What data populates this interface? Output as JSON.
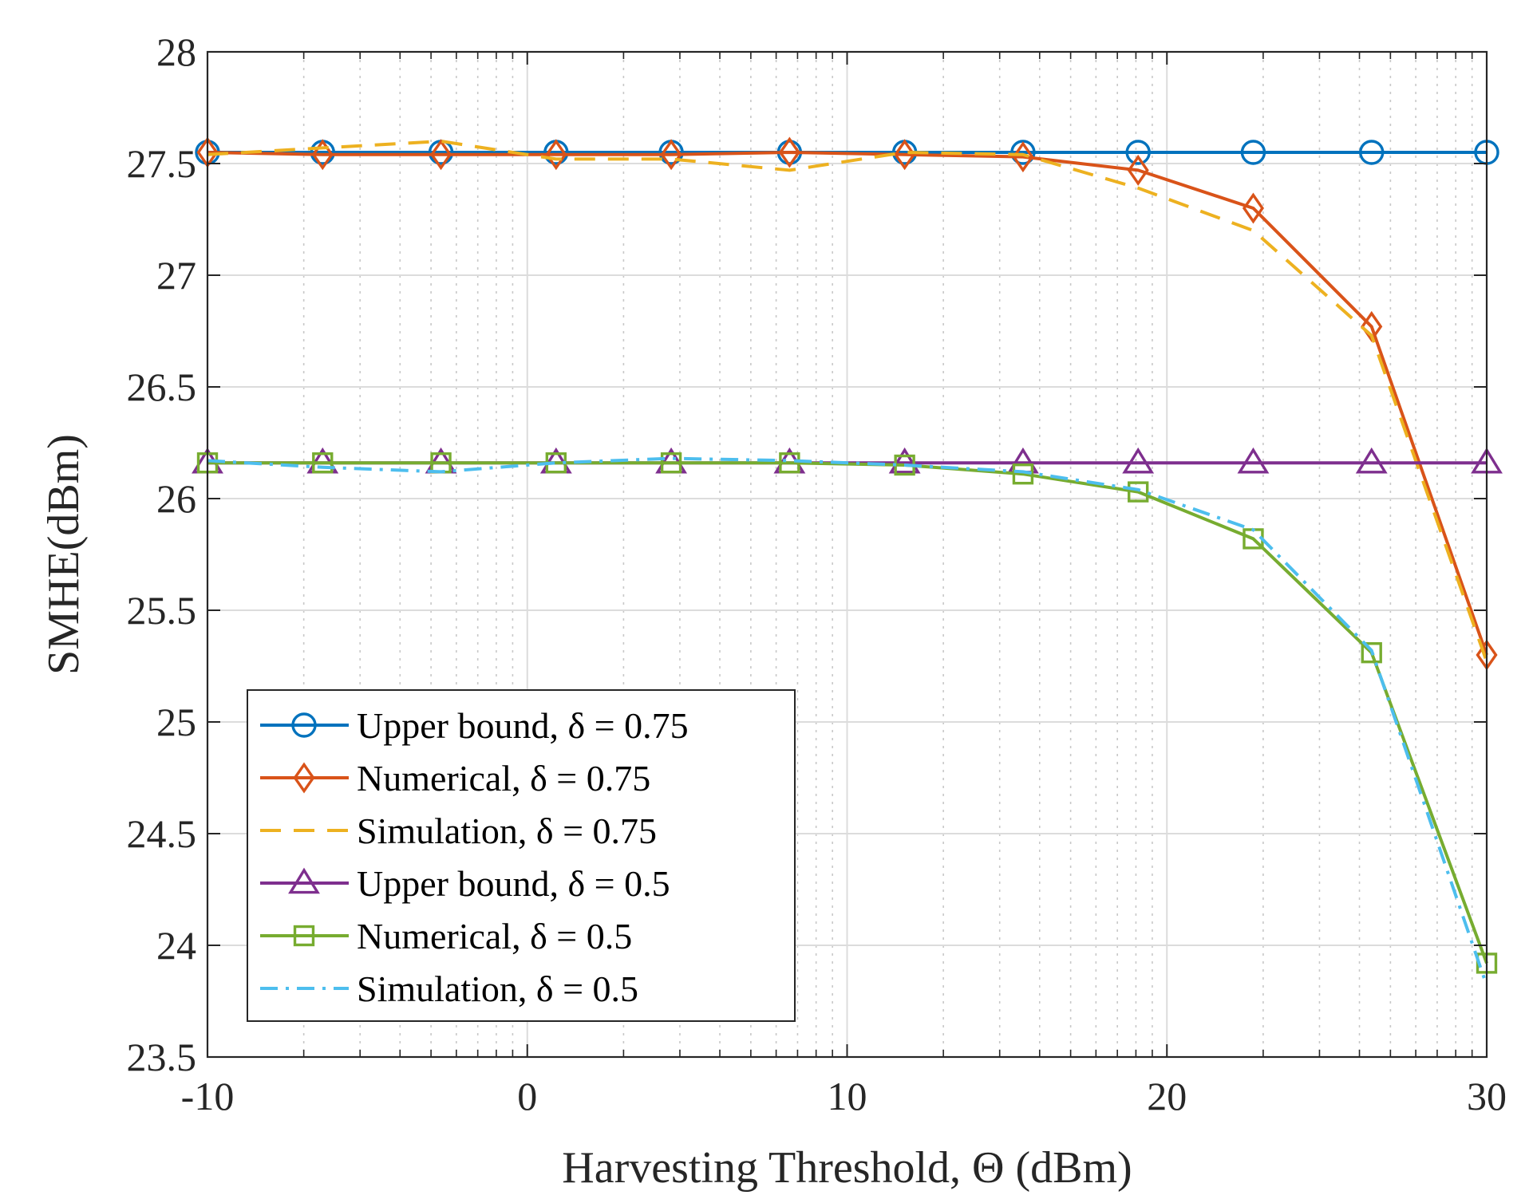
{
  "chart_data": {
    "type": "line",
    "title": "",
    "xlabel": "Harvesting Threshold,  Θ (dBm)",
    "ylabel": "SMHE(dBm)",
    "xlim": [
      -10,
      30
    ],
    "ylim": [
      23.5,
      28
    ],
    "xticks": [
      -10,
      0,
      10,
      20,
      30
    ],
    "xtick_labels": [
      "-10",
      "0",
      "10",
      "20",
      "30"
    ],
    "yticks": [
      23.5,
      24,
      24.5,
      25,
      25.5,
      26,
      26.5,
      27,
      27.5,
      28
    ],
    "ytick_labels": [
      "23.5",
      "24",
      "24.5",
      "25",
      "25.5",
      "26",
      "26.5",
      "27",
      "27.5",
      "28"
    ],
    "grid": true,
    "legend_position": "bottom-left",
    "x": [
      -10,
      -6.4,
      -2.7,
      0.9,
      4.5,
      8.2,
      11.8,
      15.5,
      19.1,
      22.7,
      26.4,
      30
    ],
    "series": [
      {
        "name": "Upper bound, δ = 0.75",
        "color": "#0072BD",
        "marker": "circle",
        "dash": "solid",
        "values": [
          27.55,
          27.55,
          27.55,
          27.55,
          27.55,
          27.55,
          27.55,
          27.55,
          27.55,
          27.55,
          27.55,
          27.55
        ]
      },
      {
        "name": "Numerical, δ = 0.75",
        "color": "#D95319",
        "marker": "diamond",
        "dash": "solid",
        "values": [
          27.55,
          27.54,
          27.54,
          27.54,
          27.54,
          27.55,
          27.54,
          27.53,
          27.47,
          27.3,
          26.77,
          25.3
        ]
      },
      {
        "name": "Simulation, δ = 0.75",
        "color": "#EDB120",
        "marker": "none",
        "dash": "dashed",
        "values": [
          27.54,
          27.57,
          27.6,
          27.52,
          27.52,
          27.47,
          27.55,
          27.54,
          27.39,
          27.2,
          26.73,
          25.27
        ]
      },
      {
        "name": "Upper bound, δ = 0.5",
        "color": "#7E2F8E",
        "marker": "triangle",
        "dash": "solid",
        "values": [
          26.16,
          26.16,
          26.16,
          26.16,
          26.16,
          26.16,
          26.16,
          26.16,
          26.16,
          26.16,
          26.16,
          26.16
        ]
      },
      {
        "name": "Numerical, δ = 0.5",
        "color": "#77AC30",
        "marker": "square",
        "dash": "solid",
        "values": [
          26.16,
          26.16,
          26.16,
          26.16,
          26.16,
          26.16,
          26.15,
          26.11,
          26.03,
          25.82,
          25.31,
          23.92
        ]
      },
      {
        "name": "Simulation, δ = 0.5",
        "color": "#4DBEEE",
        "marker": "none",
        "dash": "dashdot",
        "values": [
          26.17,
          26.14,
          26.12,
          26.16,
          26.18,
          26.17,
          26.15,
          26.12,
          26.04,
          25.86,
          25.32,
          23.82
        ]
      }
    ]
  }
}
